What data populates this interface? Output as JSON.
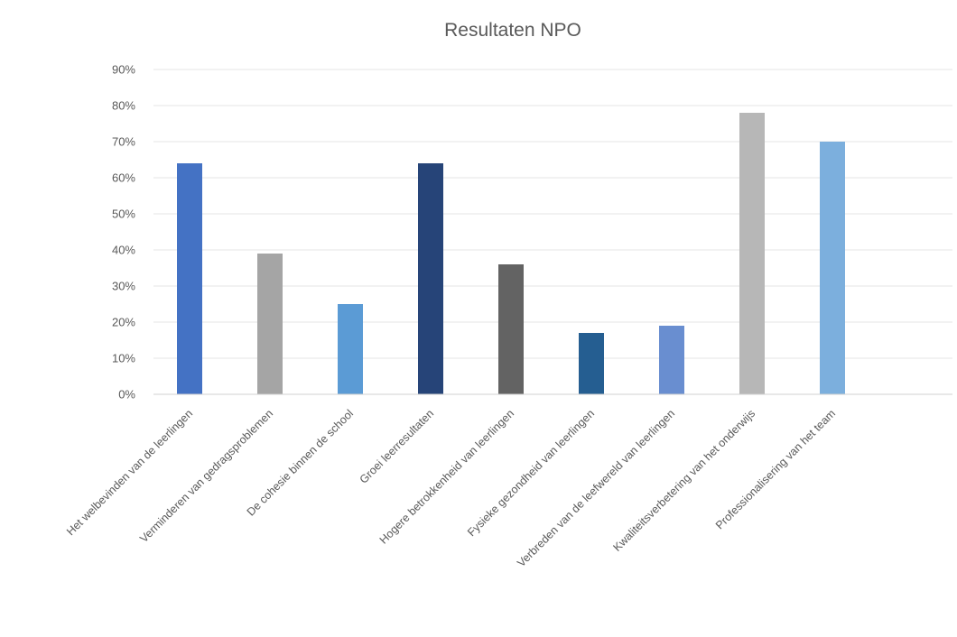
{
  "chart_data": {
    "type": "bar",
    "title": "Resultaten NPO",
    "xlabel": "",
    "ylabel": "",
    "ylim": [
      0,
      90
    ],
    "y_ticks": [
      "0%",
      "10%",
      "20%",
      "30%",
      "40%",
      "50%",
      "60%",
      "70%",
      "80%",
      "90%"
    ],
    "grid": true,
    "legend": "none",
    "categories": [
      "Het welbevinden van de leerlingen",
      "Verminderen van gedragsproblemen",
      "De cohesie binnen de school",
      "Groei leerresultaten",
      "Hogere betrokkenheid van leerlingen",
      "Fysieke gezondheid van leerlingen",
      "Verbreden van de leefwereld van leerlingen",
      "Kwaliteitsverbetering van het onderwijs",
      "Professionalisering van het team"
    ],
    "values": [
      64,
      39,
      25,
      64,
      36,
      17,
      19,
      78,
      70
    ],
    "colors": [
      "#4472c4",
      "#a5a5a5",
      "#5b9bd5",
      "#264478",
      "#636363",
      "#255e91",
      "#698ed0",
      "#b7b7b7",
      "#7cafdd"
    ]
  }
}
